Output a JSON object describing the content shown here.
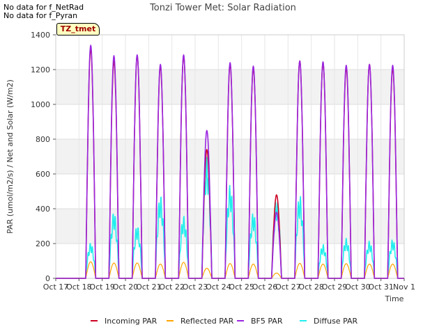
{
  "notes": [
    "No data for f_NetRad",
    "No data for f_Pyran"
  ],
  "badge": "TZ_tmet",
  "chart_data": {
    "type": "line",
    "title": "Tonzi Tower Met: Solar Radiation",
    "xlabel": "Time",
    "ylabel": "PAR (umol/m2/s) / Net and Solar (W/m2)",
    "ylim": [
      0,
      1400
    ],
    "yticks": [
      0,
      200,
      400,
      600,
      800,
      1000,
      1200,
      1400
    ],
    "xlim": [
      0,
      15
    ],
    "xticks": [
      "Oct 17",
      "Oct 18",
      "Oct 19",
      "Oct 20",
      "Oct 21",
      "Oct 22",
      "Oct 23",
      "Oct 24",
      "Oct 25",
      "Oct 26",
      "Oct 27",
      "Oct 28",
      "Oct 29",
      "Oct 30",
      "Oct 31",
      "Nov 1"
    ],
    "grid": true,
    "legend_position": "bottom",
    "x_units": "days since Oct 17 00:00",
    "series": [
      {
        "name": "Incoming PAR",
        "color": "#cc0022",
        "peaks": [
          1320,
          1250,
          1280,
          1220,
          1280,
          740,
          1230,
          1210,
          480,
          1250,
          1240,
          1210,
          1230,
          1210
        ]
      },
      {
        "name": "Reflected PAR",
        "color": "#ffa500",
        "peaks": [
          95,
          88,
          88,
          82,
          92,
          58,
          85,
          82,
          30,
          86,
          82,
          84,
          82,
          82
        ]
      },
      {
        "name": "BF5 PAR",
        "color": "#9a26e0",
        "peaks": [
          1340,
          1280,
          1285,
          1230,
          1285,
          850,
          1240,
          1220,
          380,
          1250,
          1245,
          1225,
          1230,
          1225
        ]
      },
      {
        "name": "Diffuse PAR",
        "color": "#22eeee",
        "peaks": [
          205,
          385,
          305,
          480,
          360,
          700,
          540,
          380,
          460,
          480,
          195,
          230,
          215,
          225
        ]
      }
    ]
  }
}
